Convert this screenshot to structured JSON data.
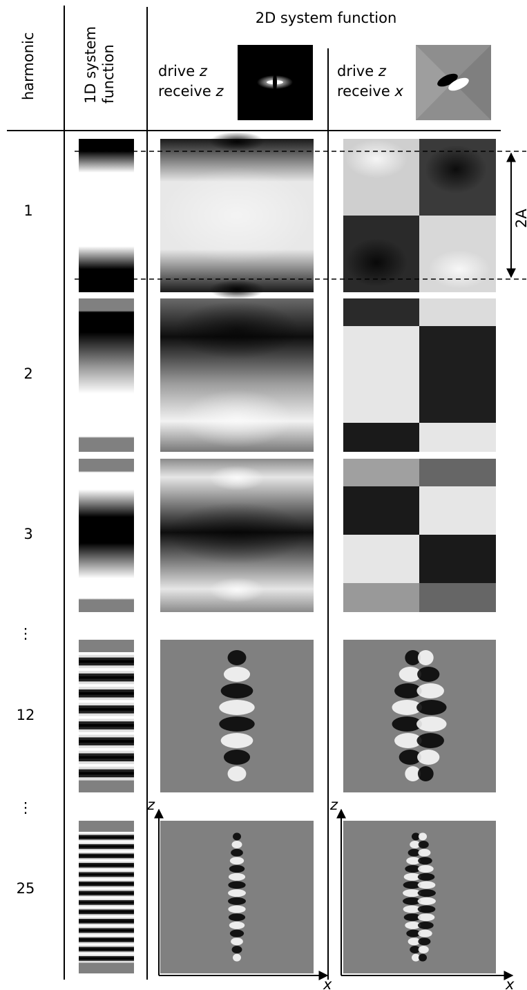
{
  "header": {
    "harmonic": "harmonic",
    "sys1d_line1": "1D system",
    "sys1d_line2": "function",
    "sys2d": "2D system function"
  },
  "columns": {
    "zz_line1": "drive",
    "zz_var1": "z",
    "zz_line2": "receive",
    "zz_var2": "z",
    "zx_line1": "drive",
    "zx_var1": "z",
    "zx_line2": "receive",
    "zx_var2": "x"
  },
  "rows": [
    {
      "label": "1"
    },
    {
      "label": "2"
    },
    {
      "label": "3"
    },
    {
      "label": "⋮"
    },
    {
      "label": "12"
    },
    {
      "label": "⋮"
    },
    {
      "label": "25"
    }
  ],
  "annotation": "2A",
  "axes": {
    "z": "z",
    "x": "x"
  }
}
